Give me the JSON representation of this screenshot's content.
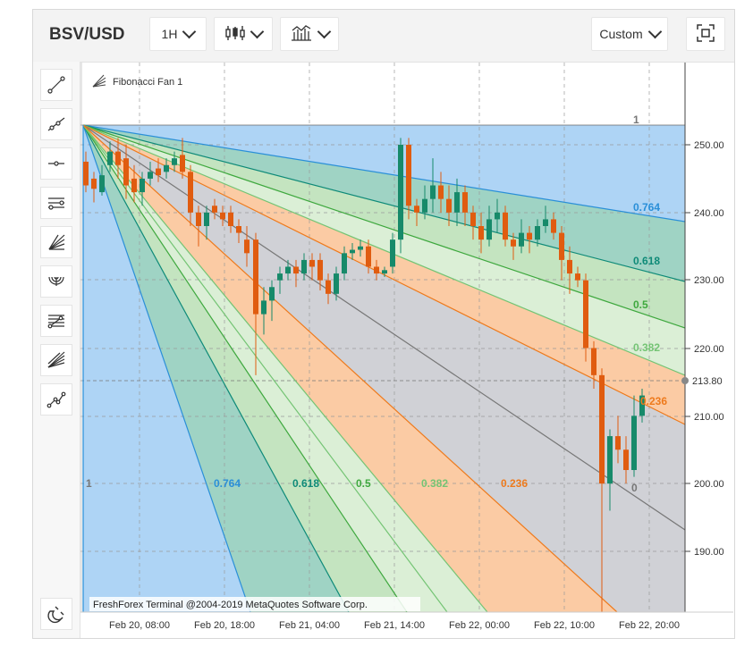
{
  "toolbar": {
    "symbol": "BSV/USD",
    "timeframe": "1H",
    "custom_label": "Custom",
    "icons": [
      "candles-icon",
      "chart-type-icon",
      "fullscreen-icon"
    ]
  },
  "sidebar": {
    "tools": [
      "trendline-icon",
      "ray-icon",
      "horizontal-line-icon",
      "channel-icon",
      "fibonacci-fan-icon",
      "fibonacci-arcs-icon",
      "fibonacci-levels-icon",
      "gann-fan-icon",
      "polyline-icon",
      "magnet-icon"
    ]
  },
  "chart": {
    "indicator_name": "Fibonacci Fan 1",
    "watermark": "FreshForex Terminal @2004-2019 MetaQuotes Software Corp.",
    "current_price": "213.80",
    "y_ticks": [
      "250.00",
      "240.00",
      "230.00",
      "220.00",
      "210.00",
      "200.00",
      "190.00"
    ],
    "x_ticks": [
      "Feb 20, 08:00",
      "Feb 20, 18:00",
      "Feb 21, 04:00",
      "Feb 21, 14:00",
      "Feb 22, 00:00",
      "Feb 22, 10:00",
      "Feb 22, 20:00"
    ],
    "fan_levels_right": [
      "0.764",
      "0.618",
      "0.5",
      "0.382",
      "0.236"
    ],
    "fan_levels_bottom": [
      "1",
      "0.764",
      "0.618",
      "0.5",
      "0.382",
      "0.236",
      "0"
    ],
    "top_right_label": "1",
    "colors": {
      "up": "#178a6a",
      "down": "#e05c10",
      "fan_764": "#2a8fd8",
      "fan_618": "#0e8a78",
      "fan_5": "#3ea83e",
      "fan_382": "#74c474",
      "fan_236": "#ee7a1c",
      "fan_0": "#777777"
    }
  }
}
